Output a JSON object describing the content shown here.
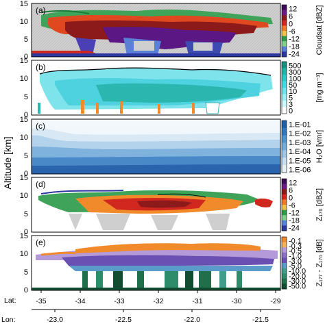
{
  "figure": {
    "ylabel": "Altitude [km]",
    "lat_label": "Lat:",
    "lon_label": "Lon:",
    "lat_ticks": [
      "-35",
      "-34",
      "-33",
      "-32",
      "-31",
      "-30",
      "-29"
    ],
    "lon_ticks": [
      "-23.0",
      "-22.5",
      "-22.0",
      "-21.5"
    ]
  },
  "panels": [
    {
      "label": "(a)",
      "y_ticks": [
        "15",
        "10",
        "5",
        "0"
      ],
      "colorbar_title": "Cloudsat [dBZ]",
      "colorbar_ticks": [
        "12",
        "6",
        "0",
        "-6",
        "-12",
        "-18",
        "-24"
      ],
      "colorbar_colors": [
        "#3b0b57",
        "#6a1a84",
        "#8c1a1a",
        "#d0281e",
        "#f07a28",
        "#f3c24a",
        "#2f9a4a",
        "#7fd08a",
        "#5a7fd6",
        "#2a38a0"
      ]
    },
    {
      "label": "(b)",
      "y_ticks": [
        "15",
        "10",
        "5",
        "0"
      ],
      "colorbar_title": "[mg m⁻³]",
      "colorbar_ticks": [
        "500",
        "300",
        "100",
        "50",
        "10",
        "5",
        "3",
        "0"
      ],
      "colorbar_colors": [
        "#18907f",
        "#22b4a6",
        "#2cc9c4",
        "#46d8e0",
        "#6ee3ee",
        "#9bf0f6",
        "#c9f8fb",
        "#ffffff"
      ]
    },
    {
      "label": "(c)",
      "y_ticks": [
        "15",
        "10",
        "5",
        "0"
      ],
      "colorbar_title": "H₂O [vmr]",
      "colorbar_ticks": [
        "1.E-01",
        "1.E-02",
        "1.E-03",
        "1.E-04",
        "1.E-05",
        "1.E-06"
      ],
      "colorbar_colors": [
        "#1f5ea8",
        "#3277bd",
        "#4f93cd",
        "#73addb",
        "#9cc7e8",
        "#c6def2",
        "#e6f0f9"
      ]
    },
    {
      "label": "(d)",
      "y_ticks": [
        "15",
        "10",
        "5",
        "0"
      ],
      "colorbar_title": "Z₁₇₀ [dBZ]",
      "colorbar_ticks": [
        "12",
        "6",
        "0",
        "-6",
        "-12",
        "-18",
        "-24"
      ],
      "colorbar_colors": [
        "#3b0b57",
        "#6a1a84",
        "#8c1a1a",
        "#d0281e",
        "#f07a28",
        "#f3c24a",
        "#2f9a4a",
        "#7fd08a",
        "#5a7fd6",
        "#2a38a0"
      ]
    },
    {
      "label": "(e)",
      "y_ticks": [
        "15",
        "10",
        "5",
        "0"
      ],
      "colorbar_title": "Z₁₇₇ - Z₁₇₀ [dB]",
      "colorbar_ticks": [
        "-0.1",
        "-0.3",
        "-0.5",
        "-1.0",
        "-3.0",
        "-5.0",
        "-10.0",
        "-20.0",
        "-30.0",
        "-50.0"
      ],
      "colorbar_colors": [
        "#f08a2a",
        "#f4b35b",
        "#b59ad9",
        "#8b6fc6",
        "#6a50b2",
        "#5a9bc9",
        "#3f9d8a",
        "#2f8c6a",
        "#1f6f4a",
        "#114d30"
      ]
    }
  ]
}
